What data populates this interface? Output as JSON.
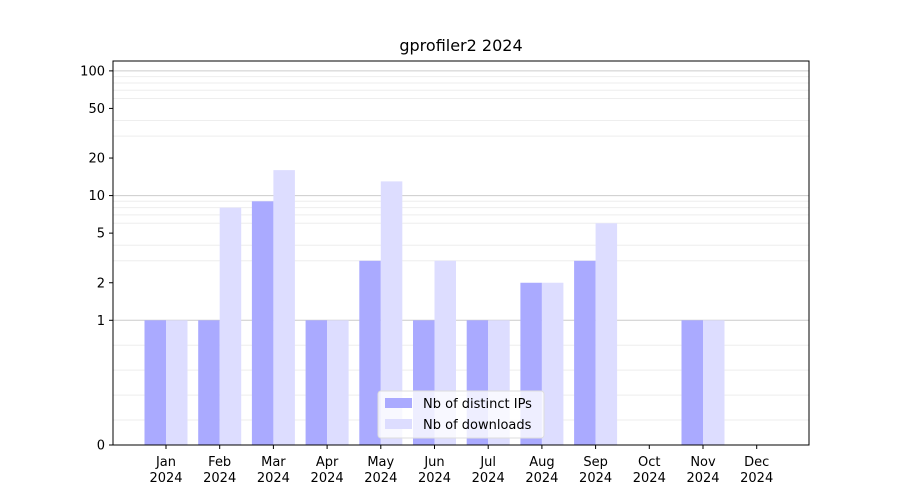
{
  "chart_data": {
    "type": "bar",
    "title": "gprofiler2 2024",
    "xlabel": "",
    "ylabel": "",
    "y_scale": "symlog",
    "ylim": [
      0,
      120
    ],
    "yticks": [
      0,
      1,
      2,
      5,
      10,
      20,
      50,
      100
    ],
    "categories": [
      [
        "Jan",
        "2024"
      ],
      [
        "Feb",
        "2024"
      ],
      [
        "Mar",
        "2024"
      ],
      [
        "Apr",
        "2024"
      ],
      [
        "May",
        "2024"
      ],
      [
        "Jun",
        "2024"
      ],
      [
        "Jul",
        "2024"
      ],
      [
        "Aug",
        "2024"
      ],
      [
        "Sep",
        "2024"
      ],
      [
        "Oct",
        "2024"
      ],
      [
        "Nov",
        "2024"
      ],
      [
        "Dec",
        "2024"
      ]
    ],
    "series": [
      {
        "name": "Nb of distinct IPs",
        "color": "#aaaaff",
        "values": [
          1,
          1,
          9,
          1,
          3,
          1,
          1,
          2,
          3,
          0,
          1,
          0
        ]
      },
      {
        "name": "Nb of downloads",
        "color": "#ddddff",
        "values": [
          1,
          8,
          16,
          1,
          13,
          3,
          1,
          2,
          6,
          0,
          1,
          0
        ]
      }
    ],
    "grid": true,
    "legend_position": "bottom-center"
  }
}
